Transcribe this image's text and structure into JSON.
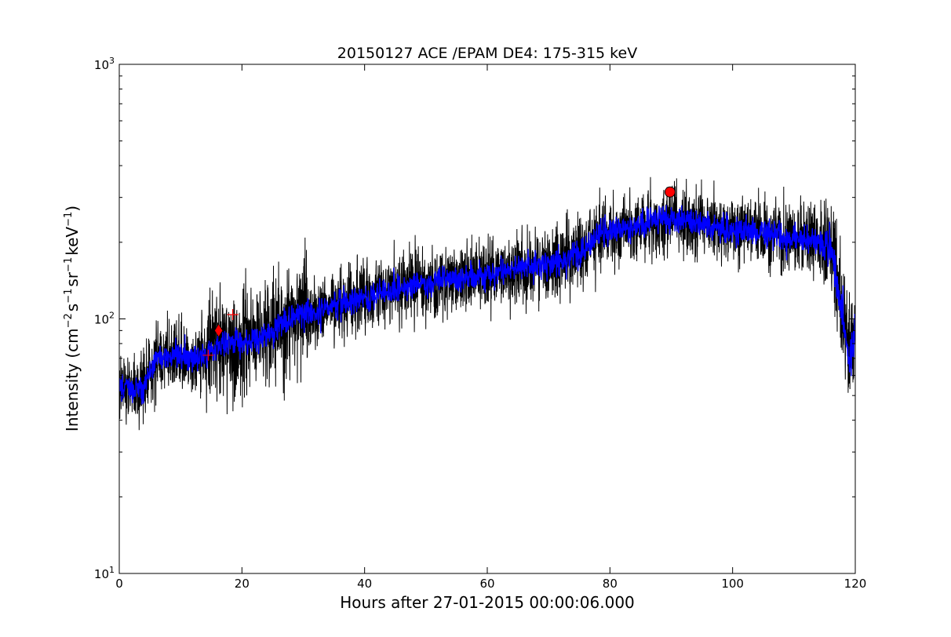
{
  "chart_data": {
    "type": "line",
    "title": "20150127 ACE /EPAM DE4: 175-315 keV",
    "xlabel": "Hours after 27-01-2015 00:00:06.000",
    "ylabel": {
      "prefix": "Intensity (cm",
      "sup1": "−2",
      "mid1": "s",
      "sup2": "−1",
      "mid2": "sr",
      "sup3": "−1",
      "mid3": "keV",
      "sup4": "−1",
      "suffix": ")"
    },
    "xlim": [
      0,
      120
    ],
    "ylim": [
      10,
      1000
    ],
    "yscale": "log",
    "grid": false,
    "x_ticks": [
      0,
      20,
      40,
      60,
      80,
      100,
      120
    ],
    "x_tick_labels": [
      "0",
      "20",
      "40",
      "60",
      "80",
      "100",
      "120"
    ],
    "y_ticks": [
      {
        "value": 10,
        "base": "10",
        "exp": "1"
      },
      {
        "value": 100,
        "base": "10",
        "exp": "2"
      },
      {
        "value": 1000,
        "base": "10",
        "exp": "3"
      }
    ],
    "series": [
      {
        "color": "#000000",
        "style": "raw-noisy",
        "x": [
          0,
          2,
          4,
          6,
          8,
          10,
          12,
          14,
          16,
          18,
          20,
          22,
          24,
          26,
          28,
          30,
          32,
          34,
          36,
          38,
          40,
          42,
          44,
          46,
          48,
          50,
          52,
          54,
          56,
          58,
          60,
          62,
          64,
          66,
          68,
          70,
          72,
          74,
          76,
          78,
          80,
          82,
          84,
          86,
          88,
          90,
          92,
          94,
          96,
          98,
          100,
          102,
          104,
          106,
          108,
          110,
          112,
          114,
          116,
          117,
          118,
          119,
          120
        ],
        "y": [
          55,
          52,
          55,
          70,
          72,
          72,
          70,
          72,
          78,
          80,
          82,
          82,
          85,
          95,
          100,
          105,
          108,
          112,
          115,
          118,
          120,
          125,
          128,
          130,
          135,
          138,
          140,
          142,
          145,
          148,
          150,
          155,
          158,
          160,
          165,
          165,
          168,
          175,
          190,
          210,
          220,
          225,
          230,
          238,
          242,
          245,
          245,
          240,
          235,
          230,
          225,
          222,
          220,
          215,
          210,
          205,
          205,
          200,
          190,
          140,
          100,
          70,
          90
        ]
      },
      {
        "color": "#0000ff",
        "style": "smoothed",
        "x": [
          0,
          2,
          4,
          6,
          8,
          10,
          12,
          14,
          16,
          18,
          20,
          22,
          24,
          26,
          28,
          30,
          32,
          34,
          36,
          38,
          40,
          42,
          44,
          46,
          48,
          50,
          52,
          54,
          56,
          58,
          60,
          62,
          64,
          66,
          68,
          70,
          72,
          74,
          76,
          78,
          80,
          82,
          84,
          86,
          88,
          90,
          92,
          94,
          96,
          98,
          100,
          102,
          104,
          106,
          108,
          110,
          112,
          114,
          116,
          117,
          118,
          119,
          120
        ],
        "y": [
          55,
          52,
          55,
          70,
          72,
          72,
          70,
          72,
          78,
          80,
          82,
          82,
          85,
          95,
          100,
          105,
          108,
          112,
          115,
          118,
          120,
          125,
          128,
          130,
          135,
          138,
          140,
          142,
          145,
          148,
          150,
          155,
          158,
          160,
          165,
          165,
          168,
          175,
          190,
          210,
          220,
          225,
          230,
          238,
          242,
          245,
          245,
          240,
          235,
          230,
          225,
          222,
          220,
          215,
          210,
          205,
          205,
          200,
          190,
          140,
          100,
          70,
          90
        ]
      }
    ],
    "markers": [
      {
        "shape": "plus",
        "x": 14.5,
        "y": 72,
        "color": "#ff0000"
      },
      {
        "shape": "diamond",
        "x": 16.2,
        "y": 90,
        "color": "#ff0000"
      },
      {
        "shape": "plus",
        "x": 18.5,
        "y": 104,
        "color": "#ff0000"
      },
      {
        "shape": "circle",
        "x": 89.8,
        "y": 315,
        "color": "#ff0000"
      }
    ]
  }
}
